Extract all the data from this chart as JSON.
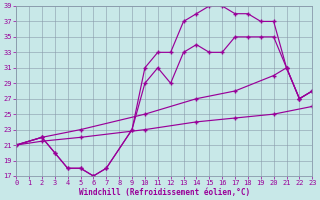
{
  "xlabel": "Windchill (Refroidissement éolien,°C)",
  "xlim": [
    0,
    23
  ],
  "ylim": [
    17,
    39
  ],
  "xticks": [
    0,
    1,
    2,
    3,
    4,
    5,
    6,
    7,
    8,
    9,
    10,
    11,
    12,
    13,
    14,
    15,
    16,
    17,
    18,
    19,
    20,
    21,
    22,
    23
  ],
  "yticks": [
    17,
    19,
    21,
    23,
    25,
    27,
    29,
    31,
    33,
    35,
    37,
    39
  ],
  "line_color": "#990099",
  "bg_color": "#c8e8e8",
  "grid_color": "#8899aa",
  "lines": [
    {
      "x": [
        0,
        2,
        5,
        10,
        14,
        17,
        20,
        23
      ],
      "y": [
        21,
        21.5,
        22,
        23,
        24,
        24.5,
        25,
        26
      ]
    },
    {
      "x": [
        0,
        2,
        5,
        10,
        14,
        17,
        20,
        21,
        22,
        23
      ],
      "y": [
        21,
        22,
        23,
        25,
        27,
        28,
        30,
        31,
        27,
        28
      ]
    },
    {
      "x": [
        0,
        2,
        3,
        4,
        5,
        6,
        7,
        9,
        10,
        11,
        12,
        13,
        14,
        15,
        16,
        17,
        18,
        19,
        20,
        21,
        22,
        23
      ],
      "y": [
        21,
        22,
        20,
        18,
        18,
        17,
        18,
        23,
        29,
        31,
        29,
        33,
        34,
        33,
        33,
        35,
        35,
        35,
        35,
        31,
        27,
        28
      ]
    },
    {
      "x": [
        0,
        2,
        3,
        4,
        5,
        6,
        7,
        9,
        10,
        11,
        12,
        13,
        14,
        15,
        16,
        17,
        18,
        19,
        20,
        21,
        22,
        23
      ],
      "y": [
        21,
        22,
        20,
        18,
        18,
        17,
        18,
        23,
        31,
        33,
        33,
        37,
        38,
        39,
        39,
        38,
        38,
        37,
        37,
        31,
        27,
        28
      ]
    }
  ]
}
